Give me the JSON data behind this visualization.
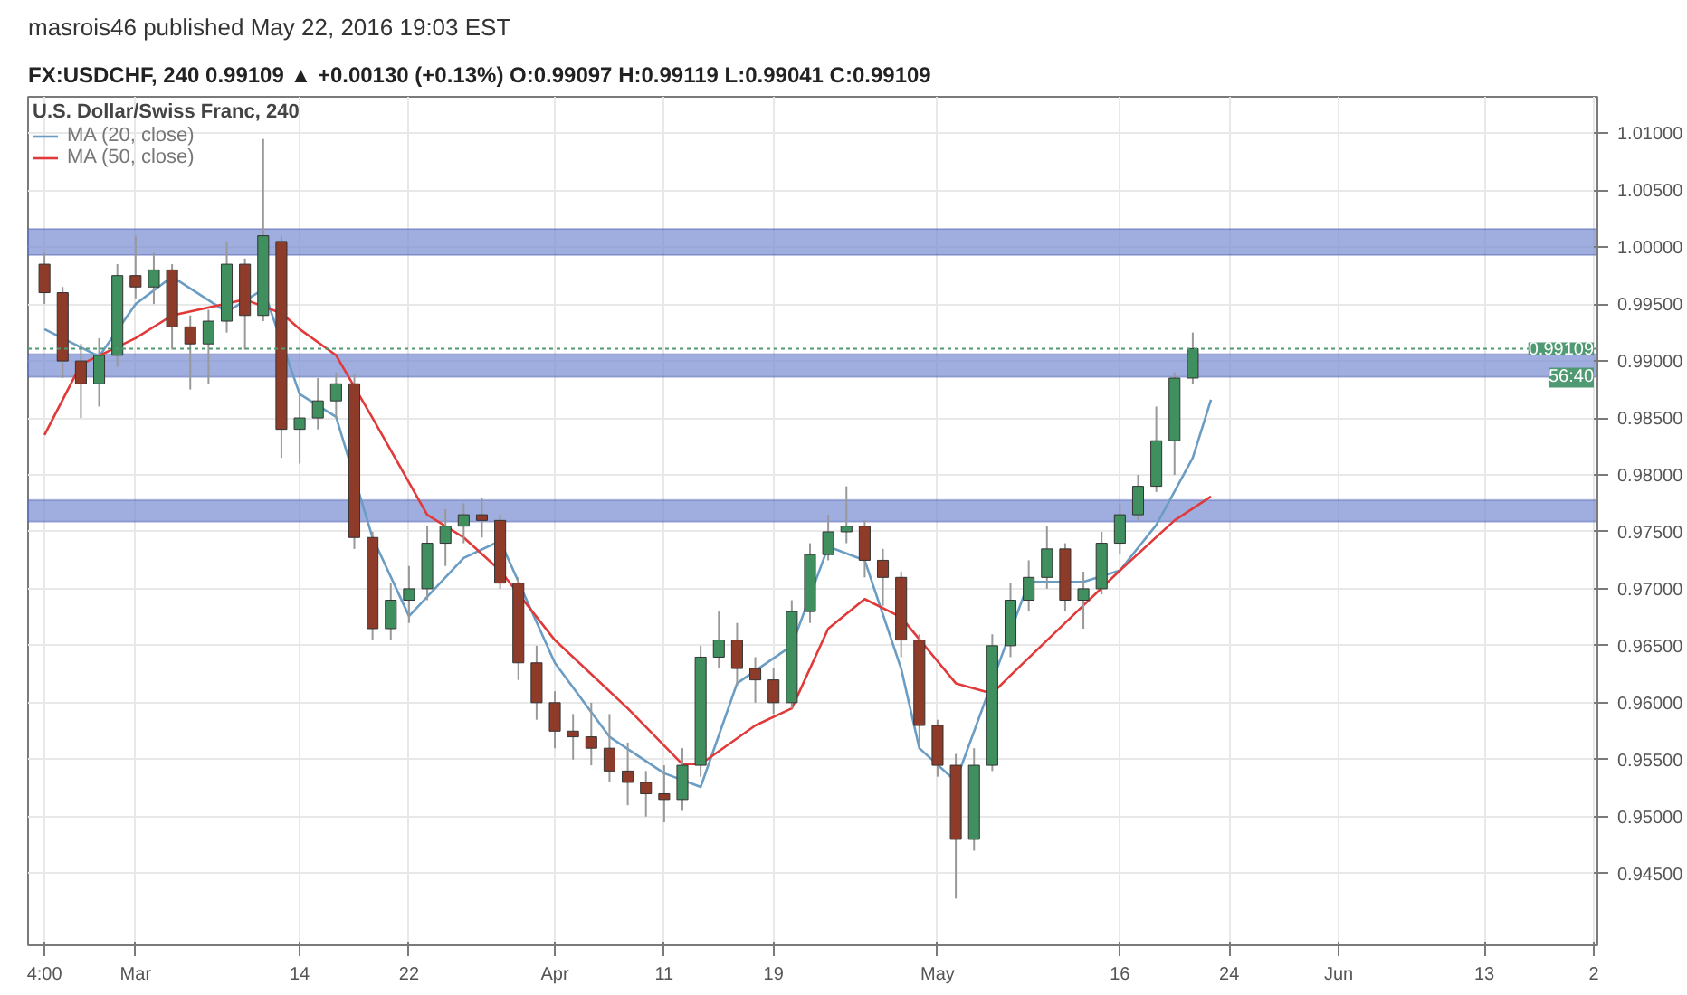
{
  "chart_data": {
    "type": "candlestick",
    "title": "masrois46 published May 22, 2016 19:03 EST",
    "subtitle": "FX:USDCHF, 240  0.99109 ▲ +0.00130 (+0.13%)  O:0.99097  H:0.99119  L:0.99041  C:0.99109",
    "legend_title": "U.S. Dollar/Swiss Franc, 240",
    "categories": [
      "4:00",
      null,
      null,
      null,
      null,
      "Mar",
      null,
      null,
      null,
      null,
      null,
      null,
      null,
      null,
      "14",
      null,
      null,
      null,
      null,
      null,
      "22",
      null,
      null,
      null,
      null,
      null,
      null,
      null,
      "Apr",
      null,
      null,
      null,
      null,
      null,
      "11",
      null,
      null,
      null,
      null,
      null,
      "19",
      null,
      null,
      null,
      null,
      null,
      null,
      null,
      null,
      "May",
      null,
      null,
      null,
      null,
      null,
      null,
      null,
      null,
      null,
      "16",
      null,
      null,
      null,
      null,
      null,
      "24",
      null,
      null,
      null,
      null,
      null,
      "Jun",
      null,
      null,
      null,
      null,
      null,
      null,
      null,
      "13",
      null,
      null,
      null,
      null,
      null,
      "2"
    ],
    "ohlc": [
      [
        0.9985,
        0.9995,
        0.995,
        0.996
      ],
      [
        0.996,
        0.9965,
        0.9885,
        0.99
      ],
      [
        0.99,
        0.9915,
        0.985,
        0.988
      ],
      [
        0.988,
        0.992,
        0.986,
        0.9905
      ],
      [
        0.9905,
        0.9985,
        0.9895,
        0.9975
      ],
      [
        0.9975,
        1.001,
        0.9955,
        0.9965
      ],
      [
        0.9965,
        0.9995,
        0.995,
        0.998
      ],
      [
        0.998,
        0.9985,
        0.991,
        0.993
      ],
      [
        0.993,
        0.994,
        0.9875,
        0.9915
      ],
      [
        0.9915,
        0.9945,
        0.988,
        0.9935
      ],
      [
        0.9935,
        1.0005,
        0.9925,
        0.9985
      ],
      [
        0.9985,
        0.999,
        0.991,
        0.994
      ],
      [
        0.994,
        1.0095,
        0.9935,
        1.001
      ],
      [
        1.0005,
        1.001,
        0.9815,
        0.984
      ],
      [
        0.984,
        0.987,
        0.981,
        0.985
      ],
      [
        0.985,
        0.9885,
        0.984,
        0.9865
      ],
      [
        0.9865,
        0.989,
        0.985,
        0.988
      ],
      [
        0.988,
        0.9888,
        0.9735,
        0.9745
      ],
      [
        0.9745,
        0.975,
        0.9655,
        0.9665
      ],
      [
        0.9665,
        0.9705,
        0.9655,
        0.969
      ],
      [
        0.969,
        0.972,
        0.967,
        0.97
      ],
      [
        0.97,
        0.9755,
        0.969,
        0.974
      ],
      [
        0.974,
        0.977,
        0.972,
        0.9755
      ],
      [
        0.9755,
        0.9775,
        0.974,
        0.9765
      ],
      [
        0.9765,
        0.978,
        0.9745,
        0.976
      ],
      [
        0.976,
        0.9765,
        0.97,
        0.9705
      ],
      [
        0.9705,
        0.971,
        0.962,
        0.9635
      ],
      [
        0.9635,
        0.965,
        0.9585,
        0.96
      ],
      [
        0.96,
        0.961,
        0.956,
        0.9575
      ],
      [
        0.9575,
        0.959,
        0.955,
        0.957
      ],
      [
        0.957,
        0.96,
        0.9545,
        0.956
      ],
      [
        0.956,
        0.959,
        0.953,
        0.954
      ],
      [
        0.954,
        0.9565,
        0.951,
        0.953
      ],
      [
        0.953,
        0.954,
        0.95,
        0.952
      ],
      [
        0.952,
        0.9545,
        0.9495,
        0.9515
      ],
      [
        0.9515,
        0.956,
        0.9505,
        0.9545
      ],
      [
        0.9545,
        0.965,
        0.9535,
        0.964
      ],
      [
        0.964,
        0.968,
        0.963,
        0.9655
      ],
      [
        0.9655,
        0.967,
        0.9615,
        0.963
      ],
      [
        0.963,
        0.964,
        0.96,
        0.962
      ],
      [
        0.962,
        0.963,
        0.959,
        0.96
      ],
      [
        0.96,
        0.969,
        0.9595,
        0.968
      ],
      [
        0.968,
        0.974,
        0.967,
        0.973
      ],
      [
        0.973,
        0.9765,
        0.9725,
        0.975
      ],
      [
        0.975,
        0.979,
        0.974,
        0.9755
      ],
      [
        0.9755,
        0.976,
        0.971,
        0.9725
      ],
      [
        0.9725,
        0.9735,
        0.9685,
        0.971
      ],
      [
        0.971,
        0.9715,
        0.964,
        0.9655
      ],
      [
        0.9655,
        0.966,
        0.9565,
        0.958
      ],
      [
        0.958,
        0.9585,
        0.9535,
        0.9545
      ],
      [
        0.9545,
        0.9555,
        0.9428,
        0.948
      ],
      [
        0.948,
        0.956,
        0.947,
        0.9545
      ],
      [
        0.9545,
        0.966,
        0.954,
        0.965
      ],
      [
        0.965,
        0.9705,
        0.964,
        0.969
      ],
      [
        0.969,
        0.9725,
        0.968,
        0.971
      ],
      [
        0.971,
        0.9755,
        0.97,
        0.9735
      ],
      [
        0.9735,
        0.974,
        0.968,
        0.969
      ],
      [
        0.969,
        0.9715,
        0.9665,
        0.97
      ],
      [
        0.97,
        0.975,
        0.9695,
        0.974
      ],
      [
        0.974,
        0.9775,
        0.973,
        0.9765
      ],
      [
        0.9765,
        0.98,
        0.976,
        0.979
      ],
      [
        0.979,
        0.986,
        0.9785,
        0.983
      ],
      [
        0.983,
        0.989,
        0.98,
        0.9885
      ],
      [
        0.9885,
        0.9925,
        0.988,
        0.99109
      ],
      null,
      null,
      null,
      null,
      null,
      null,
      null,
      null,
      null,
      null,
      null,
      null,
      null,
      null,
      null,
      null,
      null,
      null,
      null,
      null,
      null,
      null
    ],
    "series": [
      {
        "type": "line",
        "name": "MA (20, close)",
        "color": "#6b9dc4",
        "values": [
          0.9928,
          null,
          null,
          0.9904,
          null,
          0.995,
          null,
          0.9974,
          null,
          null,
          0.9943,
          null,
          0.9963,
          null,
          0.9871,
          null,
          0.9851,
          null,
          0.9745,
          null,
          0.9676,
          null,
          null,
          0.9727,
          null,
          0.9742,
          null,
          null,
          0.9635,
          null,
          null,
          0.957,
          null,
          null,
          0.9538,
          null,
          0.9526,
          null,
          0.9617,
          null,
          null,
          0.965,
          null,
          0.9737,
          null,
          0.9725,
          null,
          0.963,
          0.956,
          null,
          0.9531,
          null,
          null,
          null,
          0.9706,
          null,
          null,
          0.9706,
          null,
          0.9716,
          null,
          0.9756,
          null,
          0.9815,
          0.9866,
          null,
          null,
          null,
          null,
          null,
          null,
          null,
          null,
          null,
          null,
          null,
          null,
          null,
          null,
          null,
          null,
          null,
          null,
          null,
          null,
          null
        ]
      },
      {
        "type": "line",
        "name": "MA (50, close)",
        "color": "#e03a3a",
        "values": [
          0.9835,
          null,
          0.9897,
          null,
          null,
          0.992,
          null,
          0.994,
          null,
          null,
          null,
          0.9954,
          null,
          0.9942,
          0.9928,
          null,
          0.9905,
          null,
          0.985,
          null,
          null,
          0.9765,
          null,
          0.9745,
          null,
          0.9716,
          null,
          null,
          0.9655,
          null,
          null,
          null,
          0.9595,
          null,
          null,
          0.9546,
          0.9546,
          null,
          null,
          0.958,
          null,
          0.9595,
          null,
          0.9665,
          null,
          0.9691,
          null,
          0.9675,
          null,
          null,
          0.9617,
          null,
          0.9608,
          0.9624,
          null,
          null,
          0.967,
          null,
          null,
          0.9716,
          null,
          null,
          0.976,
          null,
          0.9781,
          null,
          null,
          null,
          null,
          null,
          null,
          null,
          null,
          null,
          null,
          null,
          null,
          null,
          null,
          null,
          null,
          null,
          null,
          null,
          null,
          null
        ]
      }
    ],
    "bands": [
      {
        "axis": "y",
        "from": 0.9993,
        "to": 1.0016,
        "color": "#7f93d4"
      },
      {
        "axis": "y",
        "from": 0.9886,
        "to": 0.9906,
        "color": "#7f93d4"
      },
      {
        "axis": "y",
        "from": 0.9759,
        "to": 0.9778,
        "color": "#7f93d4"
      }
    ],
    "ref_lines": [
      {
        "axis": "y",
        "value": 0.99109,
        "label": "0.99109",
        "color": "#4f9a72",
        "line_style": "dotted"
      }
    ],
    "annotations": [
      "56:40"
    ],
    "ylim": [
      0.9387,
      1.0132
    ],
    "yticks": [
      {
        "value": 0.945,
        "label": "0.94500"
      },
      {
        "value": 0.95,
        "label": "0.95000"
      },
      {
        "value": 0.955,
        "label": "0.95500"
      },
      {
        "value": 0.96,
        "label": "0.96000"
      },
      {
        "value": 0.965,
        "label": "0.96500"
      },
      {
        "value": 0.97,
        "label": "0.97000"
      },
      {
        "value": 0.975,
        "label": "0.97500"
      },
      {
        "value": 0.98,
        "label": "0.98000"
      },
      {
        "value": 0.985,
        "label": "0.98500"
      },
      {
        "value": 0.99,
        "label": "0.99000"
      },
      {
        "value": 0.995,
        "label": "0.99500"
      },
      {
        "value": 1.0,
        "label": "1.00000"
      },
      {
        "value": 1.005,
        "label": "1.00500"
      },
      {
        "value": 1.01,
        "label": "1.01000"
      }
    ],
    "grid": true,
    "legend": "top left"
  }
}
